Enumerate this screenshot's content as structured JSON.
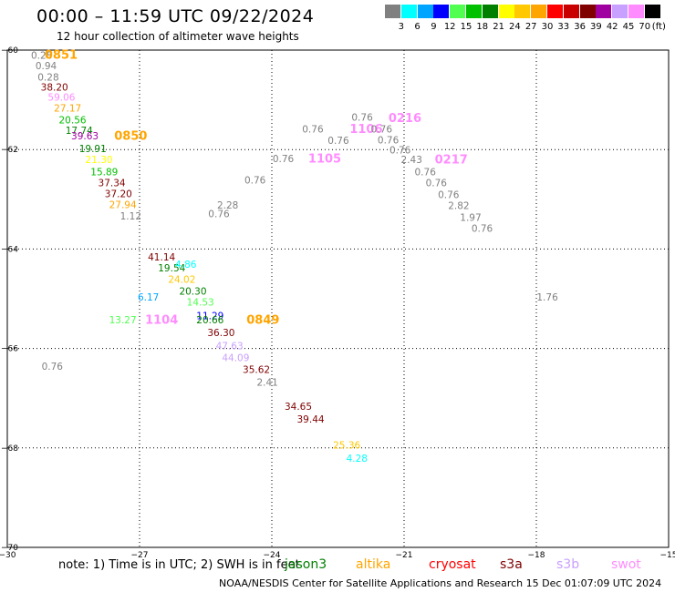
{
  "title": "00:00 – 11:59 UTC 09/22/2024",
  "subtitle": "12 hour collection of altimeter wave heights",
  "scale": {
    "unit": "(ft)",
    "labels": [
      "3",
      "6",
      "9",
      "12",
      "15",
      "18",
      "21",
      "24",
      "27",
      "30",
      "33",
      "36",
      "39",
      "42",
      "45",
      "70"
    ],
    "colors": [
      "#808080",
      "#00ffff",
      "#00a5ff",
      "#0000ff",
      "#50ff50",
      "#00c000",
      "#008000",
      "#ffff00",
      "#ffc800",
      "#ffa500",
      "#ff0000",
      "#c80000",
      "#800000",
      "#a000a0",
      "#c8a0ff",
      "#ff8cff",
      "#000000"
    ]
  },
  "note": "note:  1) Time is in UTC;  2) SWH is in feet",
  "footer": "NOAA/NESDIS Center for Satellite Applications and Research    15 Dec 01:07:09 UTC 2024",
  "satellites": [
    {
      "name": "jason3",
      "color": "#008000"
    },
    {
      "name": "altika",
      "color": "#ffa500"
    },
    {
      "name": "cryosat",
      "color": "#ff0000"
    },
    {
      "name": "s3a",
      "color": "#800000"
    },
    {
      "name": "s3b",
      "color": "#c8a0ff"
    },
    {
      "name": "swot",
      "color": "#ff8cff"
    }
  ],
  "chart_data": {
    "type": "scatter",
    "xlim": [
      -30,
      -15
    ],
    "ylim": [
      -70,
      -60
    ],
    "x_ticks": [
      -30,
      -27,
      -24,
      -21,
      -18,
      -15
    ],
    "y_ticks": [
      -60,
      -62,
      -64,
      -66,
      -68,
      -70
    ],
    "x_tick_labels": [
      "−30",
      "−27",
      "−24",
      "−21",
      "−18",
      "−15"
    ],
    "y_tick_labels": [
      "−60",
      "−62",
      "−64",
      "−66",
      "−68",
      "−70"
    ],
    "grid": true,
    "points": [
      {
        "label": "0.28",
        "x": -29.22,
        "y": -60.12,
        "color": "#808080"
      },
      {
        "label": "0851",
        "x": -28.78,
        "y": -60.11,
        "color": "#ffa500",
        "pass": true
      },
      {
        "label": "0.94",
        "x": -29.12,
        "y": -60.33,
        "color": "#808080"
      },
      {
        "label": "0.28",
        "x": -29.07,
        "y": -60.56,
        "color": "#808080"
      },
      {
        "label": "38.20",
        "x": -28.93,
        "y": -60.76,
        "color": "#800000"
      },
      {
        "label": "59.06",
        "x": -28.77,
        "y": -60.96,
        "color": "#ff8cff"
      },
      {
        "label": "27.17",
        "x": -28.63,
        "y": -61.18,
        "color": "#ffa500"
      },
      {
        "label": "20.56",
        "x": -28.52,
        "y": -61.42,
        "color": "#00c000"
      },
      {
        "label": "17.74",
        "x": -28.37,
        "y": -61.63,
        "color": "#008000"
      },
      {
        "label": "39.63",
        "x": -28.24,
        "y": -61.74,
        "color": "#a000a0"
      },
      {
        "label": "0850",
        "x": -27.2,
        "y": -61.74,
        "color": "#ffa500",
        "pass": true
      },
      {
        "label": "19.91",
        "x": -28.06,
        "y": -62.0,
        "color": "#008000"
      },
      {
        "label": "21.30",
        "x": -27.92,
        "y": -62.22,
        "color": "#ffff00"
      },
      {
        "label": "15.89",
        "x": -27.8,
        "y": -62.46,
        "color": "#00c000"
      },
      {
        "label": "37.34",
        "x": -27.63,
        "y": -62.68,
        "color": "#800000"
      },
      {
        "label": "37.20",
        "x": -27.48,
        "y": -62.9,
        "color": "#800000"
      },
      {
        "label": "27.94",
        "x": -27.38,
        "y": -63.12,
        "color": "#ffa500"
      },
      {
        "label": "1.12",
        "x": -27.2,
        "y": -63.35,
        "color": "#808080"
      },
      {
        "label": "41.14",
        "x": -26.5,
        "y": -64.18,
        "color": "#800000"
      },
      {
        "label": "19.54",
        "x": -26.27,
        "y": -64.4,
        "color": "#008000"
      },
      {
        "label": "4.86",
        "x": -25.95,
        "y": -64.32,
        "color": "#00ffff"
      },
      {
        "label": "24.02",
        "x": -26.04,
        "y": -64.62,
        "color": "#ffc800"
      },
      {
        "label": "6.17",
        "x": -26.8,
        "y": -64.98,
        "color": "#00a5ff"
      },
      {
        "label": "20.30",
        "x": -25.79,
        "y": -64.86,
        "color": "#008000"
      },
      {
        "label": "14.53",
        "x": -25.62,
        "y": -65.08,
        "color": "#50ff50"
      },
      {
        "label": "13.27",
        "x": -27.38,
        "y": -65.44,
        "color": "#50ff50"
      },
      {
        "label": "1104",
        "x": -26.5,
        "y": -65.44,
        "color": "#ff8cff",
        "pass": true
      },
      {
        "label": "11.29",
        "x": -25.4,
        "y": -65.36,
        "color": "#0000ff"
      },
      {
        "label": "20.66",
        "x": -25.4,
        "y": -65.44,
        "color": "#008000"
      },
      {
        "label": "0849",
        "x": -24.2,
        "y": -65.44,
        "color": "#ffa500",
        "pass": true
      },
      {
        "label": "36.30",
        "x": -25.15,
        "y": -65.7,
        "color": "#800000"
      },
      {
        "label": "47.63",
        "x": -24.96,
        "y": -65.96,
        "color": "#c8a0ff"
      },
      {
        "label": "44.09",
        "x": -24.82,
        "y": -66.2,
        "color": "#c8a0ff"
      },
      {
        "label": "0.76",
        "x": -28.98,
        "y": -66.37,
        "color": "#808080"
      },
      {
        "label": "35.62",
        "x": -24.35,
        "y": -66.44,
        "color": "#800000"
      },
      {
        "label": "2.41",
        "x": -24.1,
        "y": -66.69,
        "color": "#808080"
      },
      {
        "label": "34.65",
        "x": -23.4,
        "y": -67.18,
        "color": "#800000"
      },
      {
        "label": "39.44",
        "x": -23.12,
        "y": -67.44,
        "color": "#800000"
      },
      {
        "label": "25.36",
        "x": -22.3,
        "y": -67.96,
        "color": "#ffc800"
      },
      {
        "label": "4.28",
        "x": -22.07,
        "y": -68.22,
        "color": "#00ffff"
      },
      {
        "label": "0.76",
        "x": -24.38,
        "y": -62.63,
        "color": "#808080"
      },
      {
        "label": "0.76",
        "x": -23.74,
        "y": -62.2,
        "color": "#808080"
      },
      {
        "label": "2.28",
        "x": -25.0,
        "y": -63.13,
        "color": "#808080"
      },
      {
        "label": "0.76",
        "x": -25.2,
        "y": -63.31,
        "color": "#808080"
      },
      {
        "label": "1105",
        "x": -22.8,
        "y": -62.2,
        "color": "#ff8cff",
        "pass": true
      },
      {
        "label": "0.76",
        "x": -23.07,
        "y": -61.6,
        "color": "#808080"
      },
      {
        "label": "0.76",
        "x": -22.49,
        "y": -61.83,
        "color": "#808080"
      },
      {
        "label": "0.76",
        "x": -21.95,
        "y": -61.36,
        "color": "#808080"
      },
      {
        "label": "1106",
        "x": -21.86,
        "y": -61.6,
        "color": "#ff8cff",
        "pass": true
      },
      {
        "label": "0.76",
        "x": -21.51,
        "y": -61.6,
        "color": "#808080"
      },
      {
        "label": "0216",
        "x": -20.98,
        "y": -61.38,
        "color": "#ff8cff",
        "pass": true
      },
      {
        "label": "0.76",
        "x": -21.36,
        "y": -61.82,
        "color": "#808080"
      },
      {
        "label": "0.76",
        "x": -21.09,
        "y": -62.02,
        "color": "#808080"
      },
      {
        "label": "2.43",
        "x": -20.83,
        "y": -62.22,
        "color": "#808080"
      },
      {
        "label": "0217",
        "x": -19.93,
        "y": -62.22,
        "color": "#ff8cff",
        "pass": true
      },
      {
        "label": "0.76",
        "x": -20.52,
        "y": -62.46,
        "color": "#808080"
      },
      {
        "label": "0.76",
        "x": -20.27,
        "y": -62.68,
        "color": "#808080"
      },
      {
        "label": "0.76",
        "x": -19.99,
        "y": -62.92,
        "color": "#808080"
      },
      {
        "label": "2.82",
        "x": -19.76,
        "y": -63.14,
        "color": "#808080"
      },
      {
        "label": "1.97",
        "x": -19.49,
        "y": -63.38,
        "color": "#808080"
      },
      {
        "label": "0.76",
        "x": -19.23,
        "y": -63.6,
        "color": "#808080"
      },
      {
        "label": "1.76",
        "x": -17.75,
        "y": -64.98,
        "color": "#808080"
      }
    ]
  }
}
